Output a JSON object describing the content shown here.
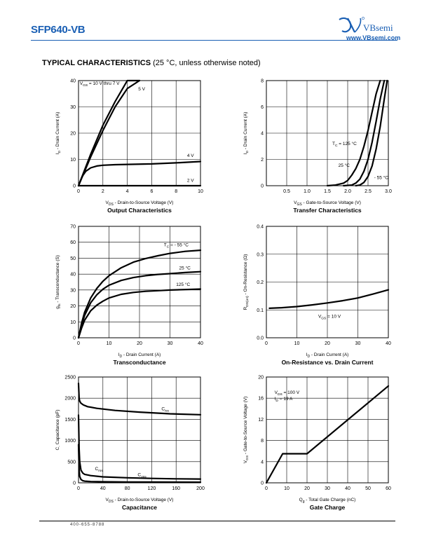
{
  "header": {
    "part_number": "SFP640-VB",
    "brand": "VBsemi",
    "url": "www.VBsemi.com"
  },
  "section": {
    "title": "TYPICAL CHARACTERISTICS",
    "condition": "(25 °C, unless otherwise noted)"
  },
  "footer": {
    "phone": "400-655-8788"
  },
  "chart_data": [
    {
      "id": "output",
      "type": "line",
      "title": "Output Characteristics",
      "xlabel_main": "V",
      "xlabel_sub": "DS",
      "xlabel_rest": " - Drain-to-Source Voltage (V)",
      "ylabel": "I D - Drain Current (A)",
      "xlim": [
        0,
        10
      ],
      "ylim": [
        0,
        40
      ],
      "xticks": [
        0,
        2,
        4,
        6,
        8,
        10
      ],
      "yticks": [
        0,
        10,
        20,
        30,
        40
      ],
      "grid": true,
      "series": [
        {
          "x": [
            0,
            0.5,
            1,
            2,
            3,
            4,
            5
          ],
          "y": [
            0,
            6,
            12,
            23,
            32,
            40,
            44
          ]
        },
        {
          "x": [
            0,
            0.5,
            1,
            2,
            3,
            4,
            5
          ],
          "y": [
            0,
            5.5,
            11,
            21,
            30,
            37,
            42
          ]
        },
        {
          "x": [
            0,
            0.3,
            0.6,
            1,
            1.5,
            2,
            3,
            4,
            6,
            8,
            10
          ],
          "y": [
            0,
            3.5,
            5.5,
            6.8,
            7.5,
            7.8,
            8.0,
            8.1,
            8.3,
            8.7,
            9.2
          ]
        },
        {
          "x": [
            0,
            10
          ],
          "y": [
            0,
            0
          ]
        }
      ],
      "labels": [
        {
          "x": 0.1,
          "y": 38.4,
          "text": "V GS = 10 V thru 7 V"
        },
        {
          "x": 4.9,
          "y": 36.3,
          "text": "5 V"
        },
        {
          "x": 8.9,
          "y": 11.0,
          "text": "4 V"
        },
        {
          "x": 8.9,
          "y": 1.5,
          "text": "2 V"
        }
      ]
    },
    {
      "id": "transfer",
      "type": "line",
      "title": "Transfer Characteristics",
      "xlabel_main": "V",
      "xlabel_sub": "GS",
      "xlabel_rest": " - Gate-to-Source Voltage (V)",
      "ylabel": "I D - Drain Current (A)",
      "xlim": [
        0,
        3
      ],
      "ylim": [
        0,
        8
      ],
      "xticks": [
        0.5,
        1.0,
        1.5,
        2.0,
        2.5,
        3.0
      ],
      "yticks": [
        0,
        2,
        4,
        6,
        8
      ],
      "xtick_labels": [
        "0.5",
        "1.0",
        "1.5",
        "2.0",
        "2.5",
        "3.0"
      ],
      "grid": true,
      "series": [
        {
          "name": "TC = 125 °C",
          "x": [
            1.5,
            1.7,
            1.9,
            2.0,
            2.1,
            2.2,
            2.3,
            2.4,
            2.5,
            2.6,
            2.7,
            2.8
          ],
          "y": [
            0,
            0.05,
            0.2,
            0.4,
            0.8,
            1.3,
            2.0,
            3.0,
            4.2,
            5.6,
            7.0,
            8.0
          ]
        },
        {
          "name": "25 °C",
          "x": [
            1.9,
            2.1,
            2.2,
            2.3,
            2.4,
            2.5,
            2.6,
            2.7,
            2.8,
            2.9
          ],
          "y": [
            0,
            0.05,
            0.2,
            0.5,
            1.1,
            2.0,
            3.3,
            4.9,
            6.6,
            8.0
          ]
        },
        {
          "name": "- 55 °C",
          "x": [
            2.2,
            2.3,
            2.4,
            2.5,
            2.6,
            2.7,
            2.8,
            2.9,
            2.97
          ],
          "y": [
            0,
            0.05,
            0.25,
            0.7,
            1.5,
            2.8,
            4.5,
            6.6,
            8.0
          ]
        }
      ],
      "labels": [
        {
          "x": 1.62,
          "y": 3.1,
          "text": "T C = 125 °C"
        },
        {
          "x": 1.77,
          "y": 1.45,
          "text": "25 °C"
        },
        {
          "x": 2.65,
          "y": 0.5,
          "text": "- 55 °C"
        }
      ]
    },
    {
      "id": "transconductance",
      "type": "line",
      "title": "Transconductance",
      "xlabel_main": "I",
      "xlabel_sub": "D",
      "xlabel_rest": " - Drain Current (A)",
      "ylabel": "g fs - Transconductance (S)",
      "xlim": [
        0,
        40
      ],
      "ylim": [
        0,
        70
      ],
      "xticks": [
        0,
        10,
        20,
        30,
        40
      ],
      "yticks": [
        0,
        10,
        20,
        30,
        40,
        50,
        60,
        70
      ],
      "grid": true,
      "series": [
        {
          "name": "TC = - 55 °C",
          "x": [
            0,
            1,
            2,
            4,
            6,
            8,
            10,
            14,
            18,
            22,
            26,
            30,
            35,
            40
          ],
          "y": [
            0,
            9,
            16,
            25,
            31,
            35.5,
            39,
            44,
            47.5,
            49.8,
            51.5,
            53,
            54.3,
            55
          ]
        },
        {
          "name": "25 °C",
          "x": [
            0,
            1,
            2,
            4,
            6,
            8,
            10,
            14,
            18,
            22,
            26,
            30,
            35,
            40
          ],
          "y": [
            0,
            8,
            14,
            22,
            27,
            30.5,
            33,
            36,
            37.8,
            39,
            39.8,
            40.3,
            41,
            41.5
          ]
        },
        {
          "name": "125 °C",
          "x": [
            0,
            1,
            2,
            4,
            6,
            8,
            10,
            14,
            18,
            22,
            26,
            30,
            35,
            40
          ],
          "y": [
            0,
            6,
            11,
            17,
            20.5,
            23,
            25,
            27.3,
            28.5,
            29.2,
            29.6,
            30,
            30.3,
            30.6
          ]
        }
      ],
      "labels": [
        {
          "x": 28,
          "y": 57.5,
          "text": "T C = - 55 °C"
        },
        {
          "x": 33,
          "y": 43,
          "text": "25 °C"
        },
        {
          "x": 32,
          "y": 32.5,
          "text": "125 °C"
        }
      ]
    },
    {
      "id": "onresistance",
      "type": "line",
      "title": "On-Resistance vs. Drain Current",
      "xlabel_main": "I",
      "xlabel_sub": "D",
      "xlabel_rest": " - Drain Current (A)",
      "ylabel": "R DS(on) - On-Resistance (Ω)",
      "xlim": [
        0,
        40
      ],
      "ylim": [
        0,
        0.4
      ],
      "xticks": [
        0,
        10,
        20,
        30,
        40
      ],
      "yticks": [
        0.0,
        0.1,
        0.2,
        0.3,
        0.4
      ],
      "ytick_labels": [
        "0.0",
        "0.1",
        "0.2",
        "0.3",
        "0.4"
      ],
      "grid": true,
      "series": [
        {
          "name": "VGS = 10 V",
          "x": [
            1,
            5,
            10,
            15,
            20,
            25,
            30,
            35,
            40
          ],
          "y": [
            0.106,
            0.108,
            0.112,
            0.118,
            0.125,
            0.133,
            0.143,
            0.157,
            0.172
          ]
        }
      ],
      "labels": [
        {
          "x": 17,
          "y": 0.072,
          "text": "V GS = 10 V"
        }
      ]
    },
    {
      "id": "capacitance",
      "type": "line",
      "title": "Capacitance",
      "xlabel_main": "V",
      "xlabel_sub": "DS",
      "xlabel_rest": " - Drain-to-Source Voltage (V)",
      "ylabel": "C - Capacitance (pF)",
      "xlim": [
        0,
        200
      ],
      "ylim": [
        0,
        2500
      ],
      "xticks": [
        0,
        40,
        80,
        120,
        160,
        200
      ],
      "yticks": [
        0,
        500,
        1000,
        1500,
        2000,
        2500
      ],
      "grid": true,
      "series": [
        {
          "name": "C iss",
          "x": [
            0,
            1,
            2,
            4,
            8,
            15,
            30,
            60,
            100,
            150,
            200
          ],
          "y": [
            2350,
            2000,
            1930,
            1880,
            1840,
            1800,
            1760,
            1710,
            1670,
            1630,
            1610
          ]
        },
        {
          "name": "C oss",
          "x": [
            0,
            1,
            2,
            4,
            7,
            10,
            20,
            40,
            80,
            120,
            160,
            200
          ],
          "y": [
            1600,
            800,
            500,
            300,
            230,
            200,
            170,
            140,
            120,
            105,
            95,
            90
          ]
        },
        {
          "name": "C rss",
          "x": [
            0,
            1,
            2,
            4,
            7,
            10,
            20,
            40,
            80,
            120,
            160,
            200
          ],
          "y": [
            900,
            300,
            150,
            80,
            50,
            40,
            30,
            25,
            20,
            18,
            16,
            15
          ]
        }
      ],
      "labels": [
        {
          "x": 136,
          "y": 1710,
          "text": "C iss"
        },
        {
          "x": 27,
          "y": 300,
          "text": "C rss"
        },
        {
          "x": 97,
          "y": 160,
          "text": "C oss"
        }
      ]
    },
    {
      "id": "gatecharge",
      "type": "line",
      "title": "Gate Charge",
      "xlabel_main": "Q",
      "xlabel_sub": "g",
      "xlabel_rest": " - Total Gate Charge (nC)",
      "ylabel": "V GS - Gate-to-Source Voltage (V)",
      "xlim": [
        0,
        60
      ],
      "ylim": [
        0,
        20
      ],
      "xticks": [
        0,
        10,
        20,
        30,
        40,
        50,
        60
      ],
      "yticks": [
        0,
        4,
        8,
        12,
        16,
        20
      ],
      "grid": true,
      "series": [
        {
          "name": "VDS = 100 V, ID = 19 A",
          "x": [
            0,
            8,
            20,
            60
          ],
          "y": [
            0,
            5.5,
            5.5,
            18.3
          ]
        }
      ],
      "labels": [
        {
          "x": 4,
          "y": 16.8,
          "text": "V DS = 100 V"
        },
        {
          "x": 4,
          "y": 15.6,
          "text": "I D = 19 A"
        }
      ]
    }
  ]
}
